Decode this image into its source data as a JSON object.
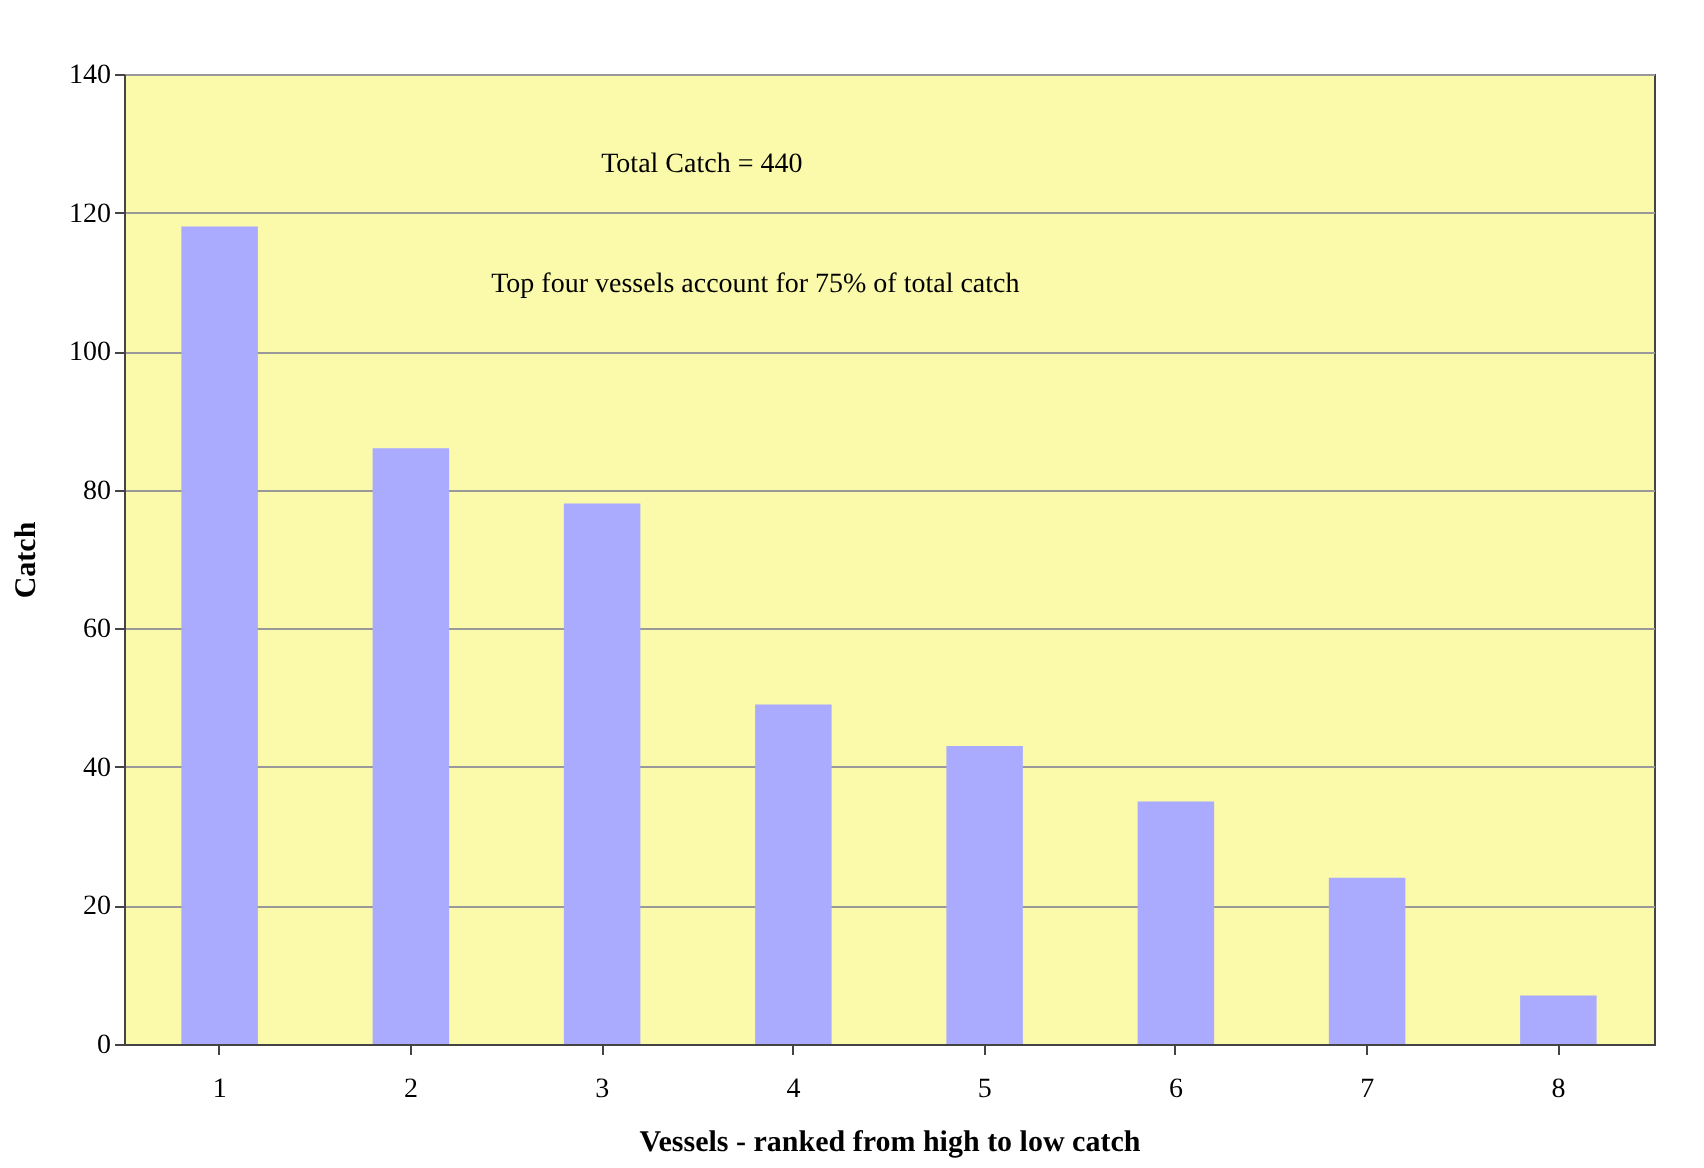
{
  "chart_data": {
    "type": "bar",
    "xlabel": "Vessels - ranked from high to low catch",
    "ylabel": "Catch",
    "categories": [
      "1",
      "2",
      "3",
      "4",
      "5",
      "6",
      "7",
      "8"
    ],
    "values": [
      118,
      86,
      78,
      49,
      43,
      35,
      24,
      7
    ],
    "color": "#aaaaff",
    "ylim": [
      0,
      140
    ],
    "yticks": [
      0,
      20,
      40,
      60,
      80,
      100,
      120,
      140
    ],
    "grid": "y",
    "annotations": [
      "Total Catch = 440",
      "Top four vessels account for 75% of total catch"
    ]
  }
}
